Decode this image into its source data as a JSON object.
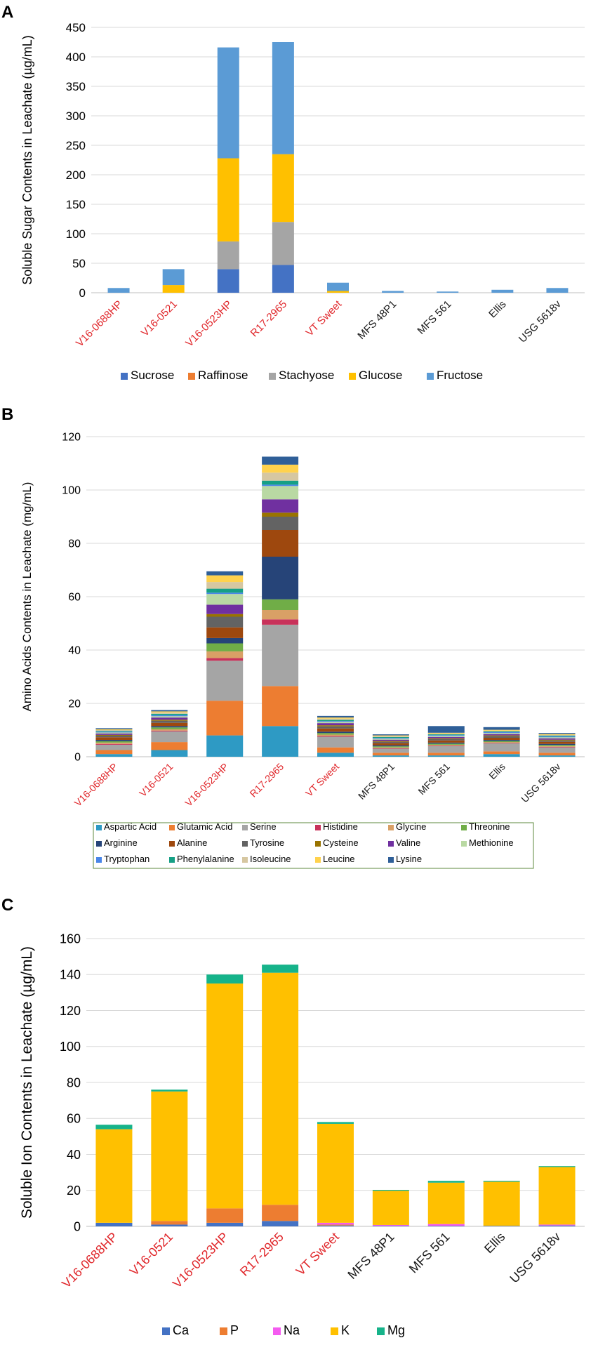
{
  "colors": {
    "red_label": "#e0262a",
    "black_label": "#1a1a1a",
    "grid": "#d9d9d9",
    "axis": "#bfbfbf",
    "legend_border": "#5c8a3c"
  },
  "chart_data": [
    {
      "panel": "A",
      "type": "bar",
      "stacked": true,
      "title": "",
      "xlabel": "",
      "ylabel": "Soluble Sugar Contents in Leachate (µg/mL)",
      "ylim": [
        0,
        450
      ],
      "yticks": [
        "0",
        "50",
        "100",
        "150",
        "200",
        "250",
        "300",
        "350",
        "400",
        "450"
      ],
      "grid": true,
      "legend": "bottom",
      "categories": [
        "V16-0688HP",
        "V16-0521",
        "V16-0523HP",
        "R17-2965",
        "VT Sweet",
        "MFS 48P1",
        "MFS 561",
        "Ellis",
        "USG 5618v"
      ],
      "category_highlight": [
        true,
        true,
        true,
        true,
        true,
        false,
        false,
        false,
        false
      ],
      "series": [
        {
          "name": "Sucrose",
          "color": "#4472c4",
          "values": [
            0,
            0,
            40,
            47,
            0,
            0,
            0,
            0,
            0
          ]
        },
        {
          "name": "Raffinose",
          "color": "#ed7d31",
          "values": [
            0,
            0,
            0,
            0,
            0,
            0,
            0,
            0,
            0
          ]
        },
        {
          "name": "Stachyose",
          "color": "#a5a5a5",
          "values": [
            0,
            0,
            47,
            73,
            0,
            0,
            0,
            0,
            0
          ]
        },
        {
          "name": "Glucose",
          "color": "#ffc000",
          "values": [
            0,
            13,
            141,
            115,
            3,
            0,
            0,
            0,
            0
          ]
        },
        {
          "name": "Fructose",
          "color": "#5b9bd5",
          "values": [
            8,
            27,
            188,
            190,
            14,
            3,
            2,
            5,
            8
          ]
        }
      ]
    },
    {
      "panel": "B",
      "type": "bar",
      "stacked": true,
      "title": "",
      "xlabel": "",
      "ylabel": "Amino Acids Contents in Leachate (mg/mL)",
      "ylim": [
        0,
        120
      ],
      "yticks": [
        "0",
        "20",
        "40",
        "60",
        "80",
        "100",
        "120"
      ],
      "grid": true,
      "legend": "bottom",
      "categories": [
        "V16-0688HP",
        "V16-0521",
        "V16-0523HP",
        "R17-2965",
        "VT Sweet",
        "MFS 48P1",
        "MFS 561",
        "Ellis",
        "USG 5618v"
      ],
      "category_highlight": [
        true,
        true,
        true,
        true,
        true,
        false,
        false,
        false,
        false
      ],
      "series": [
        {
          "name": "Aspartic Acid",
          "color": "#2e9ac4",
          "values": [
            1,
            2.5,
            8,
            11.5,
            1.5,
            0.5,
            0.5,
            1,
            0.5
          ]
        },
        {
          "name": "Glutamic Acid",
          "color": "#ed7d31",
          "values": [
            1.5,
            3,
            13,
            15,
            2,
            1,
            1,
            1,
            1
          ]
        },
        {
          "name": "Serine",
          "color": "#a5a5a5",
          "values": [
            2,
            4,
            15,
            23,
            4,
            1.5,
            2.5,
            3,
            2
          ]
        },
        {
          "name": "Histidine",
          "color": "#c8325a",
          "values": [
            0.3,
            0.3,
            1,
            2,
            0.3,
            0.2,
            0.2,
            0.2,
            0.2
          ]
        },
        {
          "name": "Glycine",
          "color": "#d9a066",
          "values": [
            0.5,
            0.5,
            2.5,
            3.5,
            0.5,
            0.3,
            0.3,
            0.3,
            0.3
          ]
        },
        {
          "name": "Threonine",
          "color": "#70ad47",
          "values": [
            0.5,
            0.7,
            3,
            4,
            0.6,
            0.4,
            0.4,
            0.4,
            0.4
          ]
        },
        {
          "name": "Arginine",
          "color": "#264478",
          "values": [
            0.5,
            0.5,
            2,
            16,
            0.5,
            0.4,
            0.4,
            0.4,
            0.4
          ]
        },
        {
          "name": "Alanine",
          "color": "#9e480e",
          "values": [
            1,
            1.2,
            4,
            10,
            1.2,
            0.8,
            0.8,
            0.8,
            0.8
          ]
        },
        {
          "name": "Tyrosine",
          "color": "#636363",
          "values": [
            0.6,
            0.8,
            4,
            5,
            0.8,
            0.5,
            0.5,
            0.6,
            0.5
          ]
        },
        {
          "name": "Cysteine",
          "color": "#997300",
          "values": [
            0.3,
            0.4,
            1,
            1.5,
            0.4,
            0.3,
            0.3,
            0.3,
            0.3
          ]
        },
        {
          "name": "Valine",
          "color": "#7030a0",
          "values": [
            0.5,
            0.8,
            3.5,
            5,
            0.8,
            0.5,
            0.5,
            0.5,
            0.5
          ]
        },
        {
          "name": "Methionine",
          "color": "#b9d9a3",
          "values": [
            0.4,
            0.5,
            4,
            5,
            0.5,
            0.4,
            0.4,
            0.4,
            0.4
          ]
        },
        {
          "name": "Tryptophan",
          "color": "#4a86e8",
          "values": [
            0.3,
            0.4,
            0.5,
            0.5,
            0.3,
            0.3,
            0.3,
            0.3,
            0.3
          ]
        },
        {
          "name": "Phenylalanine",
          "color": "#16a085",
          "values": [
            0.3,
            0.5,
            1.5,
            1.5,
            0.4,
            0.3,
            0.3,
            0.3,
            0.3
          ]
        },
        {
          "name": "Isoleucine",
          "color": "#d6c7a1",
          "values": [
            0.3,
            0.5,
            2.5,
            3,
            0.5,
            0.3,
            0.3,
            0.3,
            0.3
          ]
        },
        {
          "name": "Leucine",
          "color": "#ffd24d",
          "values": [
            0.3,
            0.4,
            2.5,
            3,
            0.4,
            0.3,
            0.3,
            0.3,
            0.3
          ]
        },
        {
          "name": "Lysine",
          "color": "#2f5f98",
          "values": [
            0.4,
            0.5,
            1.5,
            3,
            0.6,
            0.4,
            2.5,
            1,
            0.4
          ]
        }
      ]
    },
    {
      "panel": "C",
      "type": "bar",
      "stacked": true,
      "title": "",
      "xlabel": "",
      "ylabel": "Soluble Ion Contents in Leachate (µg/mL)",
      "ylim": [
        0,
        160
      ],
      "yticks": [
        "0",
        "20",
        "40",
        "60",
        "80",
        "100",
        "120",
        "140",
        "160"
      ],
      "grid": true,
      "legend": "bottom",
      "categories": [
        "V16-0688HP",
        "V16-0521",
        "V16-0523HP",
        "R17-2965",
        "VT Sweet",
        "MFS 48P1",
        "MFS 561",
        "Ellis",
        "USG 5618v"
      ],
      "category_highlight": [
        true,
        true,
        true,
        true,
        true,
        false,
        false,
        false,
        false
      ],
      "series": [
        {
          "name": "Ca",
          "color": "#4472c4",
          "values": [
            2,
            1,
            2,
            3,
            0.5,
            0.3,
            0.3,
            0.3,
            0.5
          ]
        },
        {
          "name": "P",
          "color": "#ed7d31",
          "values": [
            0,
            2,
            8,
            9,
            0.5,
            0,
            0,
            0,
            0
          ]
        },
        {
          "name": "Na",
          "color": "#f45bf0",
          "values": [
            0,
            0,
            0,
            0,
            1,
            0.5,
            1,
            0,
            0.5
          ]
        },
        {
          "name": "K",
          "color": "#ffc000",
          "values": [
            52,
            72,
            125,
            129,
            55,
            19,
            23,
            24.5,
            32
          ]
        },
        {
          "name": "Mg",
          "color": "#16b38a",
          "values": [
            2.5,
            1,
            5,
            4.5,
            1,
            0.5,
            1,
            0.5,
            0.5
          ]
        }
      ]
    }
  ],
  "panels": {
    "A": {
      "label": "A"
    },
    "B": {
      "label": "B"
    },
    "C": {
      "label": "C"
    }
  }
}
